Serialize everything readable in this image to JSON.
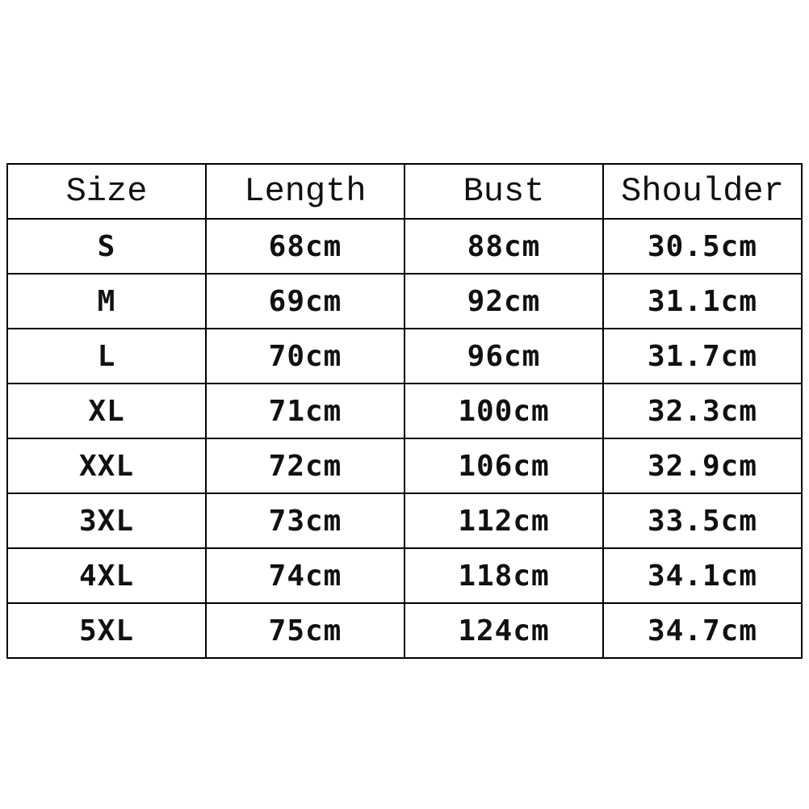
{
  "table": {
    "header": [
      "Size",
      "Length",
      "Bust",
      "Shoulder"
    ],
    "rows": [
      [
        "S",
        "68cm",
        "88cm",
        "30.5cm"
      ],
      [
        "M",
        "69cm",
        "92cm",
        "31.1cm"
      ],
      [
        "L",
        "70cm",
        "96cm",
        "31.7cm"
      ],
      [
        "XL",
        "71cm",
        "100cm",
        "32.3cm"
      ],
      [
        "XXL",
        "72cm",
        "106cm",
        "32.9cm"
      ],
      [
        "3XL",
        "73cm",
        "112cm",
        "33.5cm"
      ],
      [
        "4XL",
        "74cm",
        "118cm",
        "34.1cm"
      ],
      [
        "5XL",
        "75cm",
        "124cm",
        "34.7cm"
      ]
    ]
  }
}
